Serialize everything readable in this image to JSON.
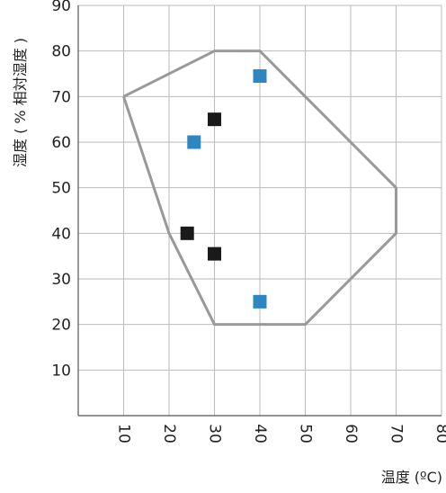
{
  "chart_data": {
    "type": "scatter",
    "title": "",
    "xlabel": "温度 (ºC)",
    "ylabel": "湿度 ( % 相対湿度 )",
    "xlim": [
      0,
      80
    ],
    "ylim": [
      0,
      90
    ],
    "x_ticks": [
      "10",
      "20",
      "30",
      "40",
      "50",
      "60",
      "70",
      "80"
    ],
    "y_ticks": [
      "10",
      "20",
      "30",
      "40",
      "50",
      "60",
      "70",
      "80",
      "90"
    ],
    "grid": true,
    "boundary": [
      [
        10,
        70
      ],
      [
        30,
        80
      ],
      [
        40,
        80
      ],
      [
        70,
        50
      ],
      [
        70,
        40
      ],
      [
        50,
        20
      ],
      [
        30,
        20
      ],
      [
        20,
        40
      ],
      [
        10,
        70
      ]
    ],
    "series": [
      {
        "color": "#1a1a1a",
        "points": [
          [
            30,
            65
          ],
          [
            24,
            40
          ],
          [
            30,
            35.5
          ]
        ]
      },
      {
        "color": "#2e86c1",
        "points": [
          [
            40,
            74.5
          ],
          [
            25.5,
            60
          ],
          [
            40,
            25
          ]
        ]
      }
    ],
    "colors": {
      "boundary": "#999999",
      "grid": "#bbbbbb",
      "axis": "#555555"
    }
  }
}
